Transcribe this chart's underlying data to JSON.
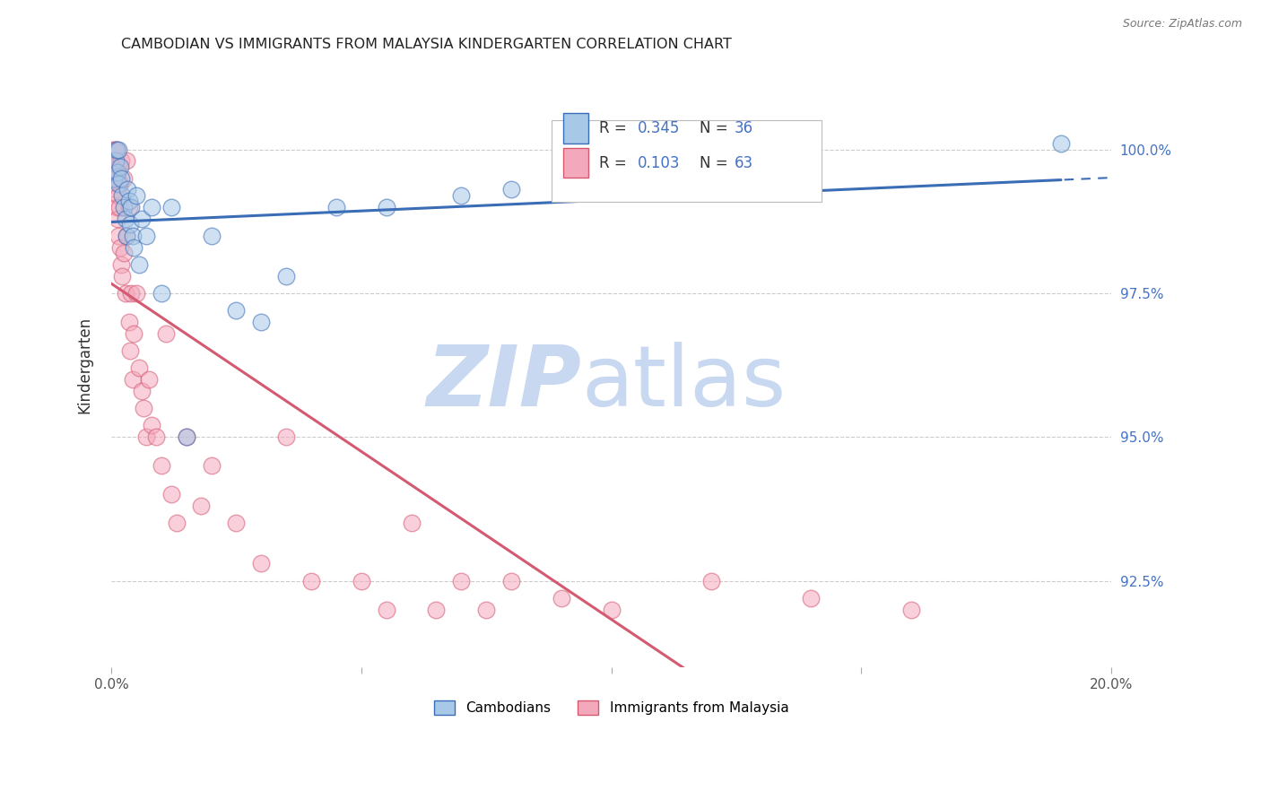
{
  "title": "CAMBODIAN VS IMMIGRANTS FROM MALAYSIA KINDERGARTEN CORRELATION CHART",
  "source": "Source: ZipAtlas.com",
  "ylabel": "Kindergarten",
  "ytick_values": [
    92.5,
    95.0,
    97.5,
    100.0
  ],
  "ytick_labels": [
    "92.5%",
    "95.0%",
    "97.5%",
    "100.0%"
  ],
  "xlim": [
    0.0,
    20.0
  ],
  "ylim": [
    91.0,
    101.5
  ],
  "legend_cambodians": "Cambodians",
  "legend_malaysia": "Immigrants from Malaysia",
  "R_cambodian": 0.345,
  "N_cambodian": 36,
  "R_malaysia": 0.103,
  "N_malaysia": 63,
  "cambodian_color": "#a8c8e8",
  "malaysia_color": "#f4a8bc",
  "trendline_cambodian_color": "#3a6db5",
  "trendline_malaysia_color": "#d45a72",
  "watermark_zip_color": "#c8d8f0",
  "watermark_atlas_color": "#c8d8f0",
  "camb_x": [
    0.05,
    0.08,
    0.1,
    0.12,
    0.15,
    0.15,
    0.18,
    0.2,
    0.22,
    0.25,
    0.28,
    0.3,
    0.32,
    0.35,
    0.38,
    0.4,
    0.42,
    0.45,
    0.5,
    0.55,
    0.6,
    0.7,
    0.8,
    1.0,
    1.2,
    1.5,
    2.0,
    2.5,
    3.0,
    3.5,
    4.5,
    5.5,
    7.0,
    8.0,
    10.0,
    19.0
  ],
  "camb_y": [
    99.5,
    99.8,
    100.0,
    99.6,
    100.0,
    99.4,
    99.7,
    99.5,
    99.2,
    99.0,
    98.8,
    98.5,
    99.3,
    99.1,
    98.7,
    99.0,
    98.5,
    98.3,
    99.2,
    98.0,
    98.8,
    98.5,
    99.0,
    97.5,
    99.0,
    95.0,
    98.5,
    97.2,
    97.0,
    97.8,
    99.0,
    99.0,
    99.2,
    99.3,
    99.5,
    100.1
  ],
  "malay_x": [
    0.02,
    0.03,
    0.04,
    0.05,
    0.06,
    0.07,
    0.08,
    0.09,
    0.1,
    0.1,
    0.12,
    0.13,
    0.14,
    0.15,
    0.15,
    0.16,
    0.17,
    0.18,
    0.2,
    0.2,
    0.22,
    0.25,
    0.25,
    0.28,
    0.3,
    0.3,
    0.35,
    0.35,
    0.38,
    0.4,
    0.42,
    0.45,
    0.5,
    0.55,
    0.6,
    0.65,
    0.7,
    0.75,
    0.8,
    0.9,
    1.0,
    1.1,
    1.2,
    1.3,
    1.5,
    1.8,
    2.0,
    2.5,
    3.0,
    3.5,
    4.0,
    5.0,
    5.5,
    6.0,
    6.5,
    7.0,
    7.5,
    8.0,
    9.0,
    10.0,
    12.0,
    14.0,
    16.0
  ],
  "malay_y": [
    99.5,
    100.0,
    99.8,
    99.5,
    99.7,
    100.0,
    99.3,
    99.6,
    99.0,
    100.0,
    99.5,
    98.8,
    99.2,
    99.7,
    98.5,
    99.0,
    98.3,
    99.4,
    98.0,
    99.8,
    97.8,
    98.2,
    99.5,
    97.5,
    98.5,
    99.8,
    97.0,
    99.0,
    96.5,
    97.5,
    96.0,
    96.8,
    97.5,
    96.2,
    95.8,
    95.5,
    95.0,
    96.0,
    95.2,
    95.0,
    94.5,
    96.8,
    94.0,
    93.5,
    95.0,
    93.8,
    94.5,
    93.5,
    92.8,
    95.0,
    92.5,
    92.5,
    92.0,
    93.5,
    92.0,
    92.5,
    92.0,
    92.5,
    92.2,
    92.0,
    92.5,
    92.2,
    92.0
  ]
}
